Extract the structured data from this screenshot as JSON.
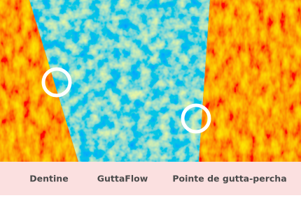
{
  "image": {
    "labels": [
      "Dentine",
      "GuttaFlow",
      "Pointe de gutta-percha"
    ]
  }
}
